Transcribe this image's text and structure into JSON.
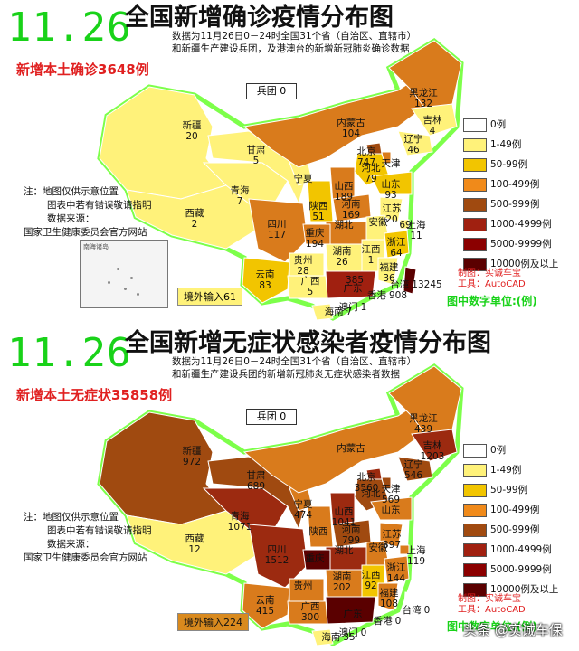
{
  "top": {
    "date": "11.26",
    "title": "全国新增确诊疫情分布图",
    "subtitle1": "数据为11月26日0－24时全国31个省（自治区、直辖市）",
    "subtitle2": "和新疆生产建设兵团，及港澳台的新增新冠肺炎确诊数据",
    "headline": "新增本土确诊3648例",
    "bingtuan": "兵团 0",
    "import": "境外输入61",
    "unit": "图中数字单位:(例)",
    "provinces": [
      {
        "name": "新疆",
        "value": "20",
        "fill": "#fff27a"
      },
      {
        "name": "西藏",
        "value": "2",
        "fill": "#fff27a"
      },
      {
        "name": "青海",
        "value": "7",
        "fill": "#fff27a"
      },
      {
        "name": "甘肃",
        "value": "5",
        "fill": "#fff27a"
      },
      {
        "name": "宁夏",
        "value": "",
        "fill": "#fff27a"
      },
      {
        "name": "内蒙古",
        "value": "104",
        "fill": "#d97b1c"
      },
      {
        "name": "黑龙江",
        "value": "132",
        "fill": "#d97b1c"
      },
      {
        "name": "吉林",
        "value": "4",
        "fill": "#fff27a"
      },
      {
        "name": "辽宁",
        "value": "46",
        "fill": "#fff27a"
      },
      {
        "name": "北京",
        "value": "747",
        "fill": "#a04a10"
      },
      {
        "name": "天津",
        "value": "",
        "fill": "#d97b1c"
      },
      {
        "name": "河北",
        "value": "79",
        "fill": "#f2c500"
      },
      {
        "name": "山西",
        "value": "189",
        "fill": "#d97b1c"
      },
      {
        "name": "山东",
        "value": "93",
        "fill": "#f2c500"
      },
      {
        "name": "陕西",
        "value": "51",
        "fill": "#f2c500"
      },
      {
        "name": "河南",
        "value": "169",
        "fill": "#d97b1c"
      },
      {
        "name": "江苏",
        "value": "20",
        "fill": "#fff27a"
      },
      {
        "name": "安徽",
        "value": "",
        "fill": "#fff27a"
      },
      {
        "name": "上海",
        "value": "11",
        "fill": "#fff27a"
      },
      {
        "name": "湖北",
        "value": "",
        "fill": "#d97b1c"
      },
      {
        "name": "四川",
        "value": "117",
        "fill": "#d97b1c"
      },
      {
        "name": "重庆",
        "value": "194",
        "fill": "#d97b1c"
      },
      {
        "name": "浙江",
        "value": "64",
        "fill": "#f2c500"
      },
      {
        "name": "湖南",
        "value": "26",
        "fill": "#fff27a"
      },
      {
        "name": "江西",
        "value": "1",
        "fill": "#fff27a"
      },
      {
        "name": "贵州",
        "value": "28",
        "fill": "#fff27a"
      },
      {
        "name": "福建",
        "value": "36",
        "fill": "#fff27a"
      },
      {
        "name": "云南",
        "value": "83",
        "fill": "#f2c500"
      },
      {
        "name": "广西",
        "value": "5",
        "fill": "#fff27a"
      },
      {
        "name": "广东",
        "value": "",
        "fill": "#a02010"
      },
      {
        "name": "台湾",
        "value": "13245",
        "fill": "#5a0000"
      },
      {
        "name": "香港",
        "value": "908",
        "fill": "#c05a10"
      },
      {
        "name": "澳门",
        "value": "1",
        "fill": "#fff27a"
      },
      {
        "name": "海南",
        "value": "7",
        "fill": "#fff27a"
      },
      {
        "name": "",
        "value": "385",
        "fill": "#a02010"
      },
      {
        "name": "",
        "value": "69",
        "fill": "#f2c500"
      }
    ]
  },
  "bottom": {
    "date": "11.26",
    "title": "全国新增无症状感染者疫情分布图",
    "subtitle1": "数据为11月26日0－24时全国31个省（自治区、直辖市）",
    "subtitle2": "和新疆生产建设兵团的新增新冠肺炎无症状感染者数据",
    "headline": "新增本土无症状35858例",
    "bingtuan": "兵团 0",
    "import": "境外输入224",
    "unit": "图中数字单位:(例)",
    "provinces": [
      {
        "name": "新疆",
        "value": "972",
        "fill": "#a04a10"
      },
      {
        "name": "西藏",
        "value": "12",
        "fill": "#fff27a"
      },
      {
        "name": "青海",
        "value": "1071",
        "fill": "#9c2a10"
      },
      {
        "name": "甘肃",
        "value": "689",
        "fill": "#a04a10"
      },
      {
        "name": "宁夏",
        "value": "474",
        "fill": "#d97b1c"
      },
      {
        "name": "内蒙古",
        "value": "",
        "fill": "#d97b1c"
      },
      {
        "name": "黑龙江",
        "value": "439",
        "fill": "#d97b1c"
      },
      {
        "name": "吉林",
        "value": "1203",
        "fill": "#9c2a10"
      },
      {
        "name": "辽宁",
        "value": "546",
        "fill": "#a04a10"
      },
      {
        "name": "北京",
        "value": "3560",
        "fill": "#9c2a10"
      },
      {
        "name": "天津",
        "value": "569",
        "fill": "#a04a10"
      },
      {
        "name": "河北",
        "value": "",
        "fill": "#a04a10"
      },
      {
        "name": "山西",
        "value": "1041",
        "fill": "#9c2a10"
      },
      {
        "name": "山东",
        "value": "",
        "fill": "#d97b1c"
      },
      {
        "name": "陕西",
        "value": "",
        "fill": "#d97b1c"
      },
      {
        "name": "河南",
        "value": "799",
        "fill": "#a04a10"
      },
      {
        "name": "江苏",
        "value": "397",
        "fill": "#d97b1c"
      },
      {
        "name": "安徽",
        "value": "",
        "fill": "#d97b1c"
      },
      {
        "name": "上海",
        "value": "119",
        "fill": "#d97b1c"
      },
      {
        "name": "湖北",
        "value": "",
        "fill": "#9c2a10"
      },
      {
        "name": "四川",
        "value": "1512",
        "fill": "#9c2a10"
      },
      {
        "name": "重庆",
        "value": "",
        "fill": "#5a0000"
      },
      {
        "name": "浙江",
        "value": "144",
        "fill": "#d97b1c"
      },
      {
        "name": "湖南",
        "value": "202",
        "fill": "#d97b1c"
      },
      {
        "name": "江西",
        "value": "92",
        "fill": "#f2c500"
      },
      {
        "name": "贵州",
        "value": "",
        "fill": "#d97b1c"
      },
      {
        "name": "福建",
        "value": "108",
        "fill": "#d97b1c"
      },
      {
        "name": "云南",
        "value": "415",
        "fill": "#d97b1c"
      },
      {
        "name": "广西",
        "value": "300",
        "fill": "#d97b1c"
      },
      {
        "name": "广东",
        "value": "",
        "fill": "#5a0000"
      },
      {
        "name": "台湾",
        "value": "0",
        "fill": "#ffffff"
      },
      {
        "name": "香港",
        "value": "0",
        "fill": "#ffffff"
      },
      {
        "name": "澳门",
        "value": "0",
        "fill": "#ffffff"
      },
      {
        "name": "海南",
        "value": "35",
        "fill": "#fff27a"
      }
    ]
  },
  "legend": [
    {
      "label": "0例",
      "color": "#ffffff"
    },
    {
      "label": "1-49例",
      "color": "#fff27a"
    },
    {
      "label": "50-99例",
      "color": "#f2c500"
    },
    {
      "label": "100-499例",
      "color": "#f08a1a"
    },
    {
      "label": "500-999例",
      "color": "#a04a10"
    },
    {
      "label": "1000-4999例",
      "color": "#a02010"
    },
    {
      "label": "5000-9999例",
      "color": "#8b0000"
    },
    {
      "label": "10000例及以上",
      "color": "#5a0000"
    }
  ],
  "notes": {
    "line1": "注：地图仅供示意位置",
    "line2": "图表中若有错误敬请指明",
    "line3": "数据来源：",
    "line4": "国家卫生健康委员会官方网站"
  },
  "credit": {
    "line1": "制图：实诚车宝",
    "line2": "工具：AutoCAD"
  },
  "inset_label": "南海诸岛",
  "watermark": "头条 @实诚车保",
  "colors": {
    "date": "#19d219",
    "headline": "#e02020",
    "border": "#7dff4a"
  }
}
